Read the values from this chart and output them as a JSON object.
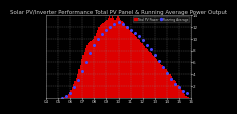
{
  "title": "Solar PV/Inverter Performance Total PV Panel & Running Average Power Output",
  "bg_color": "#000000",
  "plot_bg_color": "#000000",
  "bar_color": "#dd0000",
  "avg_color": "#4444ff",
  "grid_color": "#888888",
  "ylim": [
    0,
    14
  ],
  "ytick_vals": [
    2,
    4,
    6,
    8,
    10,
    12,
    14
  ],
  "ytick_labels": [
    "2",
    "4",
    "6",
    "8",
    "10",
    "12",
    "14"
  ],
  "n_bars": 108,
  "bar_heights": [
    0.0,
    0.0,
    0.0,
    0.0,
    0.0,
    0.0,
    0.0,
    0.0,
    0.0,
    0.0,
    0.0,
    0.0,
    0.05,
    0.1,
    0.2,
    0.4,
    0.7,
    1.0,
    1.4,
    1.8,
    2.3,
    2.8,
    3.4,
    4.0,
    4.8,
    5.6,
    6.5,
    7.2,
    7.8,
    8.5,
    9.0,
    9.2,
    9.5,
    9.6,
    9.8,
    10.0,
    10.5,
    11.0,
    11.5,
    12.0,
    12.3,
    12.5,
    12.7,
    12.8,
    13.0,
    13.1,
    13.5,
    13.8,
    13.5,
    13.8,
    13.5,
    13.2,
    13.5,
    13.8,
    13.5,
    13.2,
    13.0,
    12.8,
    12.5,
    12.2,
    12.0,
    11.8,
    11.5,
    11.2,
    11.0,
    10.8,
    10.5,
    10.2,
    10.0,
    9.8,
    9.5,
    9.2,
    9.0,
    8.8,
    8.5,
    8.2,
    8.0,
    7.8,
    7.5,
    7.2,
    7.0,
    6.8,
    6.5,
    6.2,
    6.0,
    5.8,
    5.5,
    5.2,
    5.0,
    4.8,
    4.5,
    4.2,
    4.0,
    3.7,
    3.4,
    3.1,
    2.8,
    2.5,
    2.2,
    1.9,
    1.6,
    1.3,
    1.0,
    0.7,
    0.4,
    0.2,
    0.1,
    0.0
  ],
  "avg_x": [
    12,
    15,
    18,
    21,
    24,
    27,
    30,
    33,
    36,
    39,
    42,
    45,
    48,
    51,
    54,
    57,
    60,
    63,
    66,
    69,
    72,
    75,
    78,
    81,
    84,
    87,
    90,
    93,
    96,
    99,
    102,
    105
  ],
  "avg_y": [
    0.05,
    0.3,
    0.8,
    1.8,
    3.0,
    4.5,
    6.0,
    7.5,
    9.0,
    10.0,
    10.8,
    11.5,
    12.0,
    12.5,
    12.8,
    12.5,
    12.0,
    11.5,
    11.0,
    10.5,
    9.8,
    9.0,
    8.2,
    7.2,
    6.2,
    5.2,
    4.2,
    3.2,
    2.4,
    1.8,
    1.2,
    0.8
  ],
  "xtick_positions": [
    0,
    9,
    18,
    27,
    36,
    45,
    54,
    63,
    72,
    81,
    90,
    99,
    108
  ],
  "xtick_labels": [
    "04",
    "05",
    "06",
    "07",
    "08",
    "09",
    "10",
    "11",
    "12",
    "13",
    "14",
    "15",
    "16"
  ],
  "legend_label_bar": "Total PV Power",
  "legend_label_avg": "Running Average",
  "title_fontsize": 4.0,
  "tick_fontsize": 3.0
}
